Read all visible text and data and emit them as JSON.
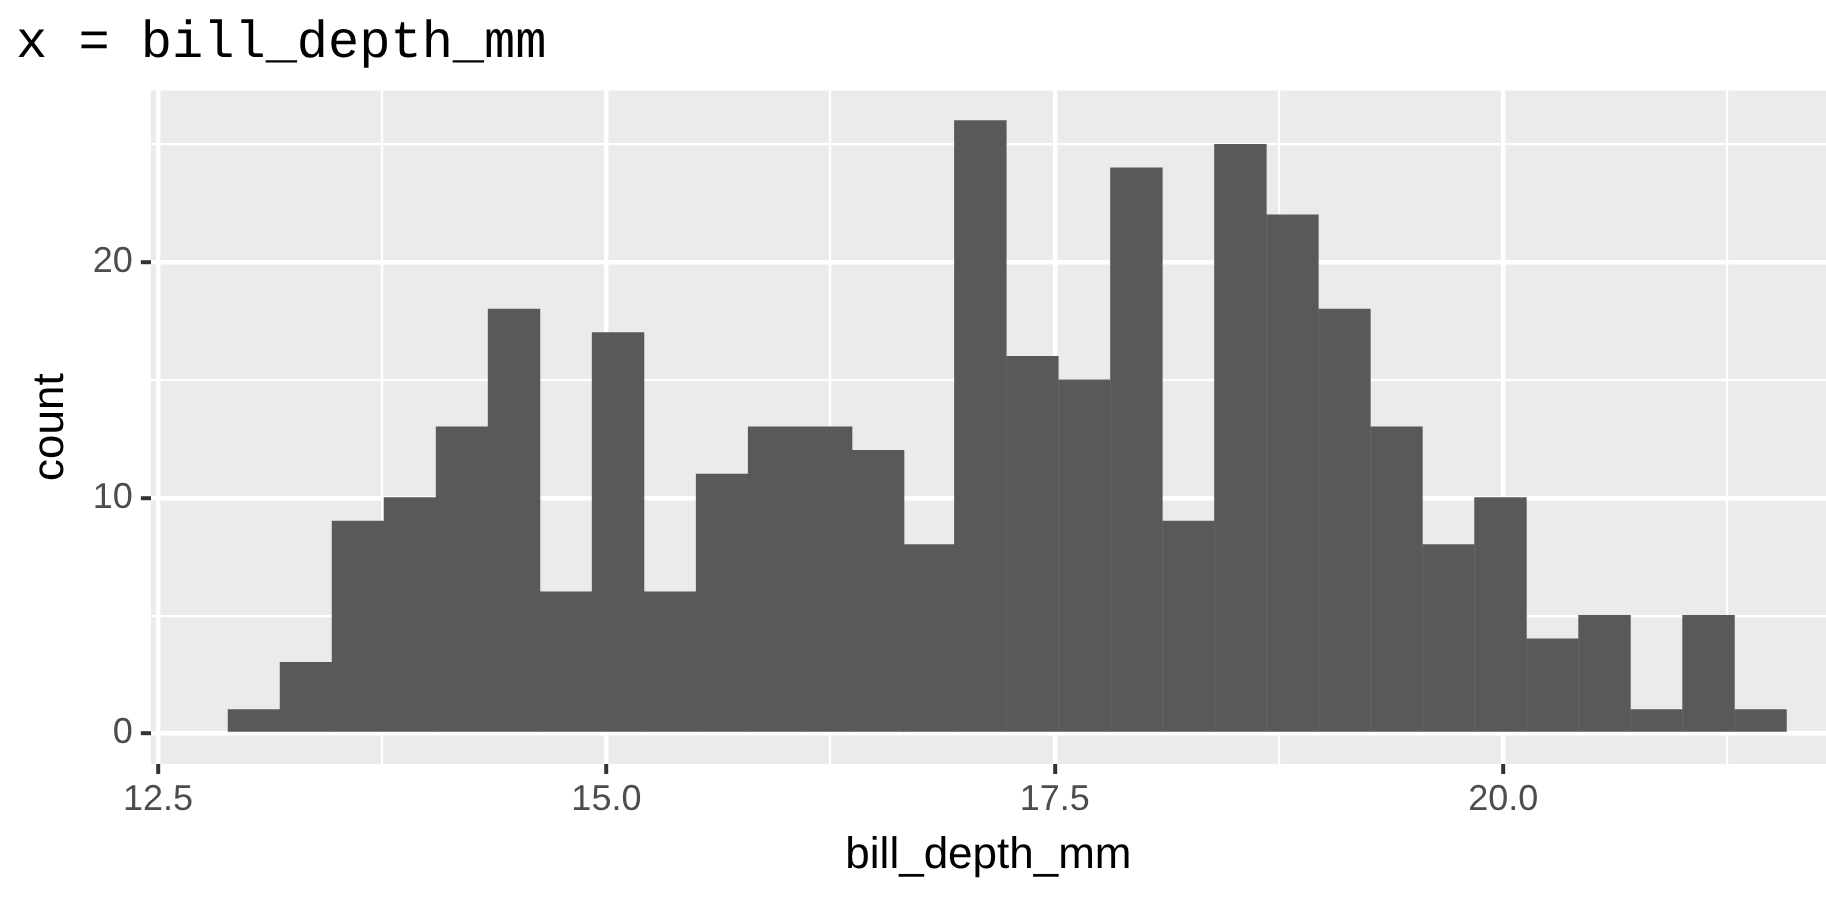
{
  "chart_data": {
    "type": "histogram",
    "title": "x = bill_depth_mm",
    "xlabel": "bill_depth_mm",
    "ylabel": "count",
    "bins": [
      12.89,
      13.18,
      13.47,
      13.76,
      14.05,
      14.34,
      14.63,
      14.92,
      15.21,
      15.5,
      15.79,
      16.08,
      16.37,
      16.66,
      16.94,
      17.23,
      17.52,
      17.81,
      18.1,
      18.39,
      18.68,
      18.97,
      19.26,
      19.55,
      19.84,
      20.13,
      20.42,
      20.71,
      21.0,
      21.29,
      21.58
    ],
    "values": [
      1,
      3,
      9,
      10,
      13,
      18,
      6,
      17,
      6,
      11,
      13,
      13,
      12,
      8,
      26,
      16,
      15,
      24,
      9,
      25,
      22,
      18,
      13,
      8,
      10,
      4,
      5,
      1,
      5,
      1
    ],
    "color": "#595959",
    "xlim": [
      12.46,
      21.8
    ],
    "xticks": [
      {
        "value": 12.5,
        "label": "12.5"
      },
      {
        "value": 13.75,
        "label": null
      },
      {
        "value": 15,
        "label": "15.0"
      },
      {
        "value": 16.25,
        "label": null
      },
      {
        "value": 17.5,
        "label": "17.5"
      },
      {
        "value": 18.75,
        "label": null
      },
      {
        "value": 20,
        "label": "20.0"
      },
      {
        "value": 21.25,
        "label": null
      }
    ],
    "ylim": [
      -1.3,
      27.3
    ],
    "yticks": [
      0,
      {
        "value": 5,
        "label": null
      },
      10,
      {
        "value": 15,
        "label": null
      },
      20,
      {
        "value": 25,
        "label": null
      }
    ],
    "grid": true,
    "legend": false
  }
}
